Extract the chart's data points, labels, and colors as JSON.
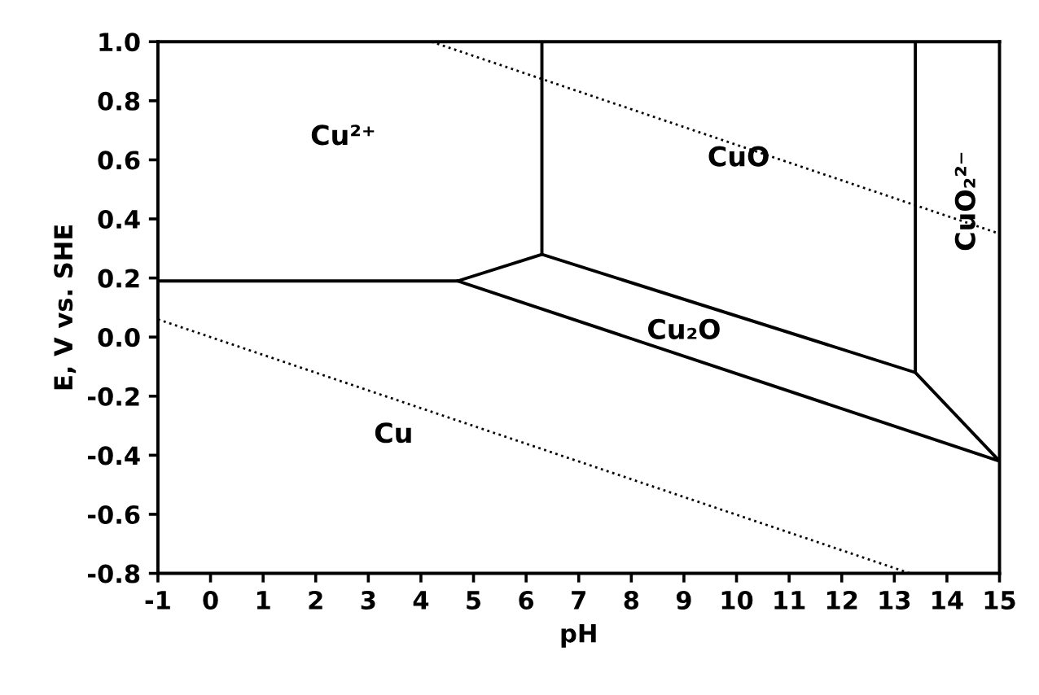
{
  "chart_data": {
    "type": "line",
    "xlabel": "pH",
    "ylabel": "E, V vs. SHE",
    "xlim": [
      -1,
      15
    ],
    "xticks": [
      -1,
      0,
      1,
      2,
      3,
      4,
      5,
      6,
      7,
      8,
      9,
      10,
      11,
      12,
      13,
      14,
      15
    ],
    "ylim": [
      -0.8,
      1.0
    ],
    "yticks": [
      {
        "value": -0.8,
        "label": "-0.8"
      },
      {
        "value": -0.6,
        "label": "-0.6"
      },
      {
        "value": -0.4,
        "label": "-0.4"
      },
      {
        "value": -0.2,
        "label": "-0.2"
      },
      {
        "value": 0.0,
        "label": "0.0"
      },
      {
        "value": 0.2,
        "label": "0.2"
      },
      {
        "value": 0.4,
        "label": "0.4"
      },
      {
        "value": 0.6,
        "label": "0.6"
      },
      {
        "value": 0.8,
        "label": "0.8"
      },
      {
        "value": 1.0,
        "label": "1.0"
      }
    ],
    "grid": false,
    "marker": "none",
    "series": [
      {
        "color": "#000000",
        "line_style": "solid",
        "x": [
          -1,
          4.7,
          6.3,
          6.3
        ],
        "values": [
          0.19,
          0.19,
          0.28,
          1.0
        ]
      },
      {
        "color": "#000000",
        "line_style": "solid",
        "x": [
          4.7,
          15,
          13.4
        ],
        "values": [
          0.19,
          -0.42,
          -0.12
        ]
      },
      {
        "color": "#000000",
        "line_style": "solid",
        "x": [
          6.3,
          13.4,
          13.4
        ],
        "values": [
          0.28,
          -0.12,
          1.0
        ]
      },
      {
        "color": "#000000",
        "line_style": "dotted",
        "x": [
          4.2,
          15
        ],
        "values": [
          1.0,
          0.35
        ]
      },
      {
        "color": "#000000",
        "line_style": "dotted",
        "x": [
          -1,
          13.3
        ],
        "values": [
          0.06,
          -0.8
        ]
      }
    ],
    "annotations": [
      "Cu²⁺",
      "CuO",
      "CuO₂²⁻",
      "Cu₂O",
      "Cu"
    ]
  }
}
